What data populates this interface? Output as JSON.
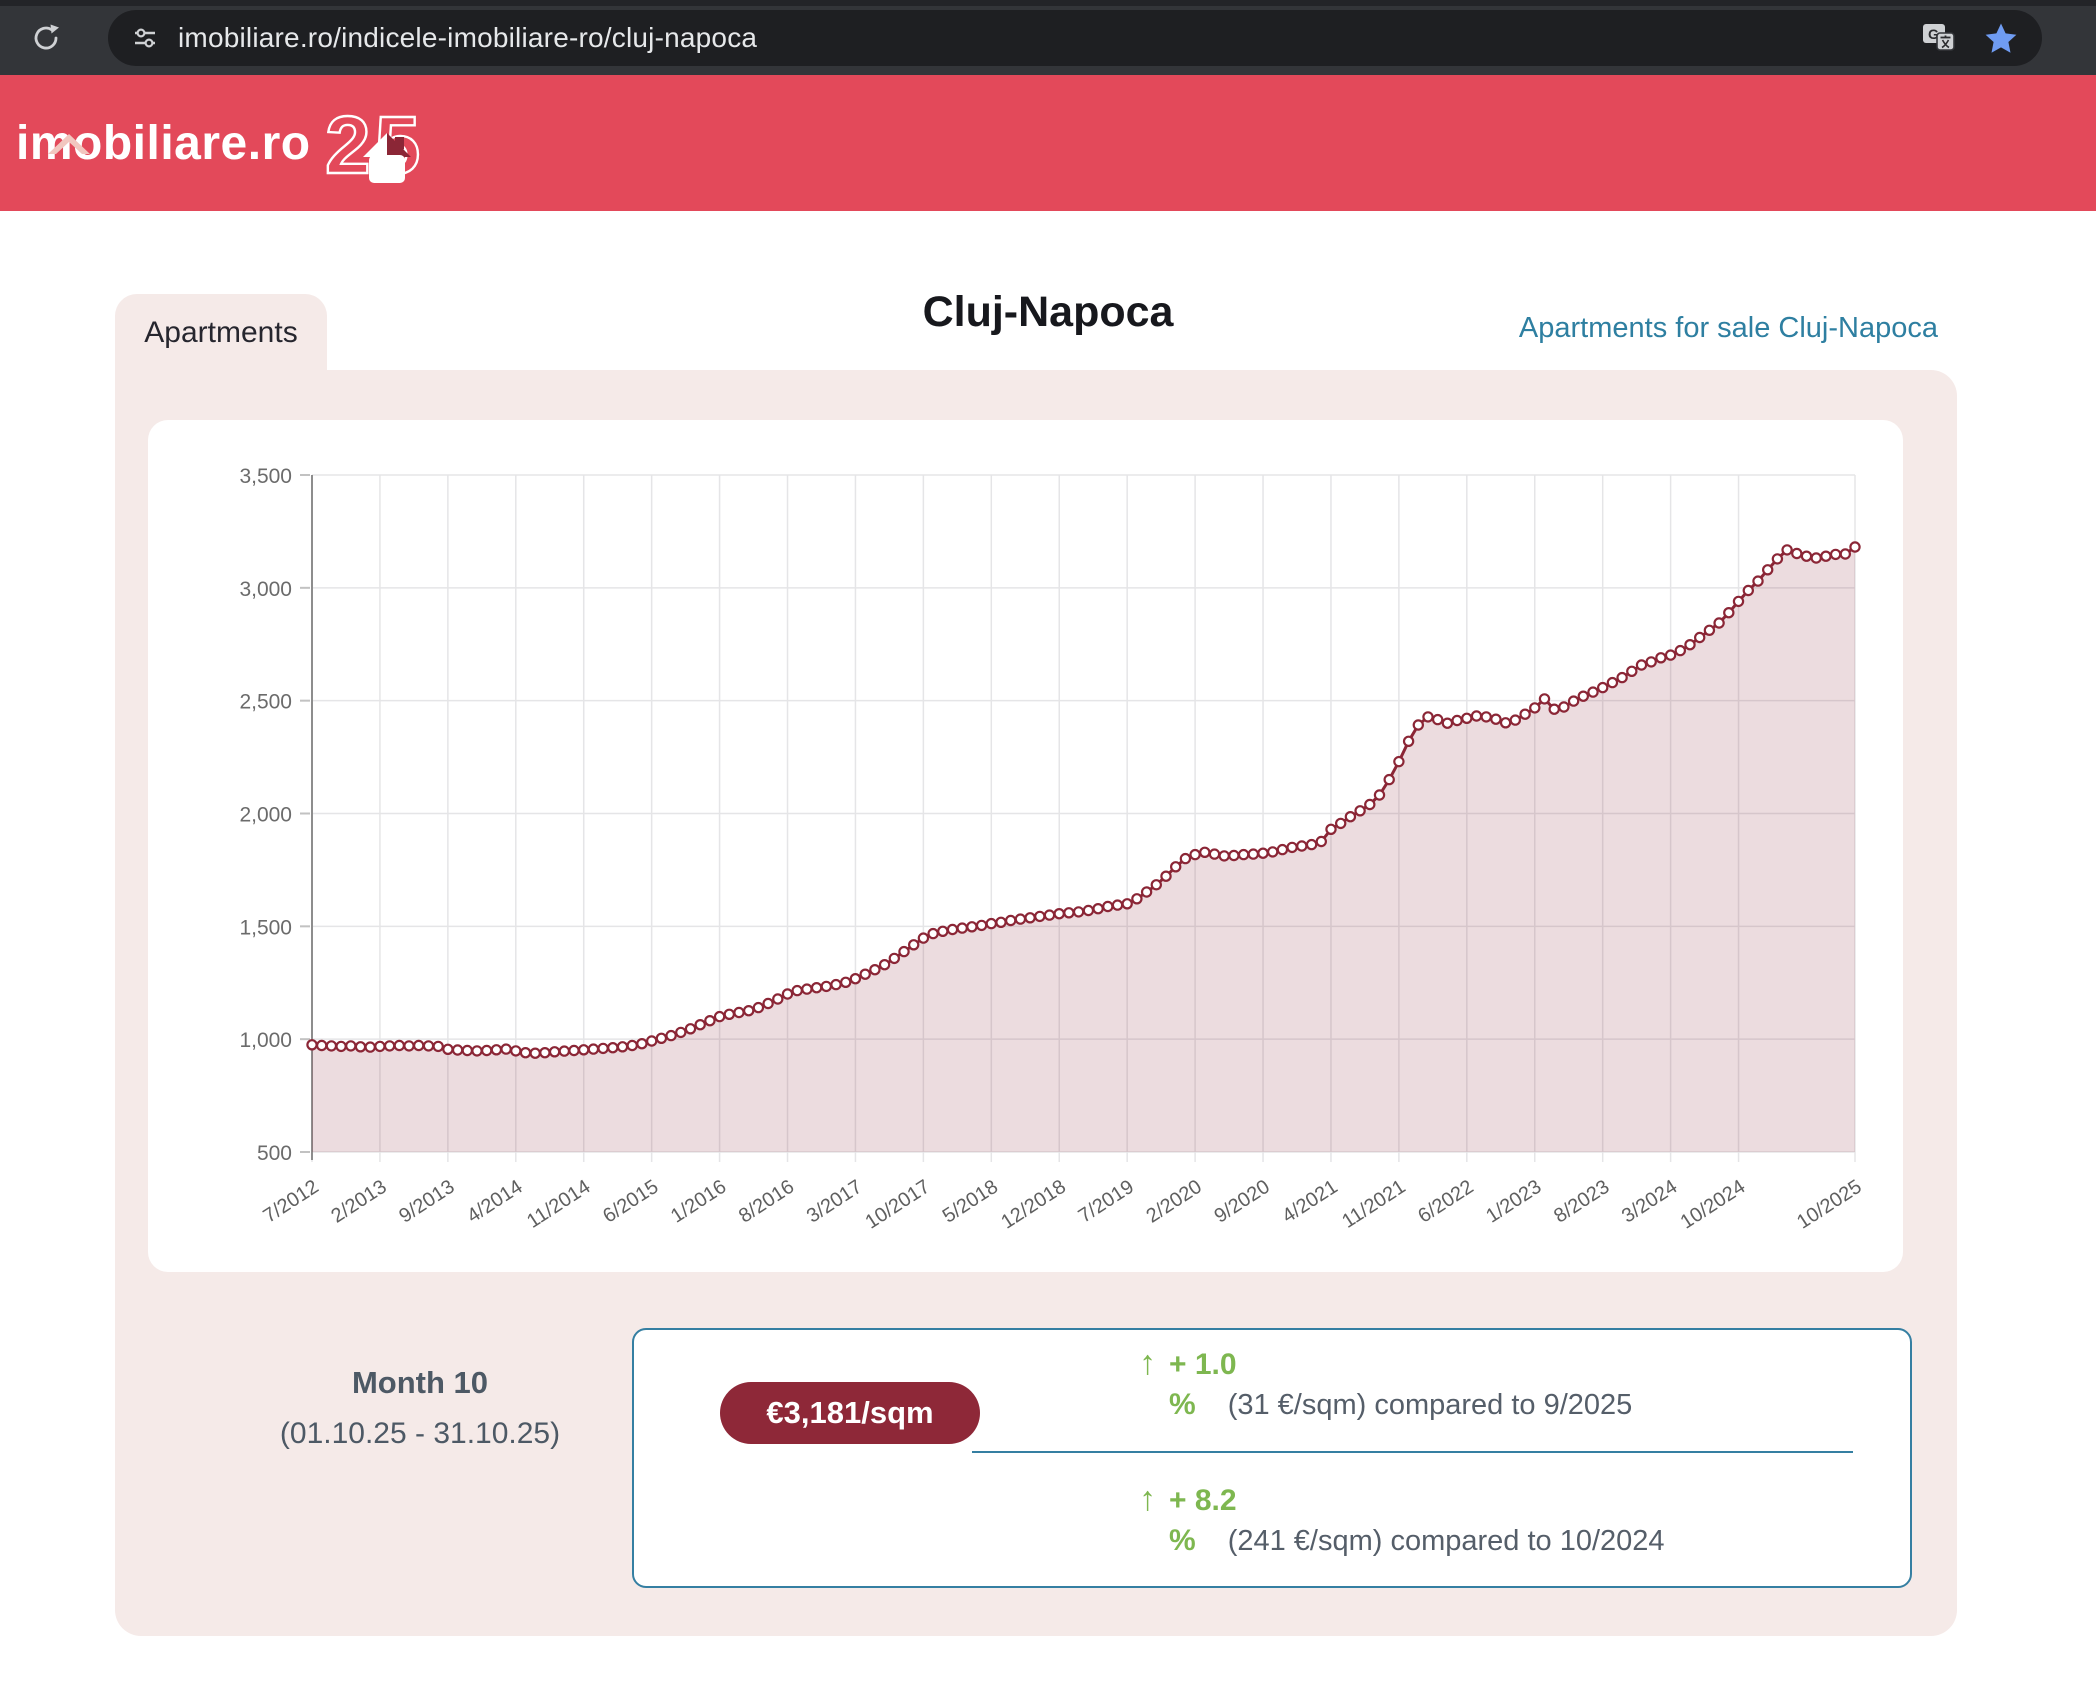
{
  "browser": {
    "url": "imobiliare.ro/indicele-imobiliare-ro/cluj-napoca"
  },
  "header": {
    "logo": "imobiliare.ro",
    "anniversary": "25"
  },
  "page": {
    "tab_label": "Apartments",
    "title": "Cluj-Napoca",
    "link_label": "Apartments for sale Cluj-Napoca"
  },
  "chart_data": {
    "type": "area",
    "title": "Cluj-Napoca apartment price index",
    "unit": "€/sqm",
    "x_start": "7/2012",
    "x_end": "10/2025",
    "x_interval": "monthly",
    "ylim": [
      500,
      3500
    ],
    "y_ticks": [
      500,
      1000,
      1500,
      2000,
      2500,
      3000,
      3500
    ],
    "y_tick_labels": [
      "500",
      "1,000",
      "1,500",
      "2,000",
      "2,500",
      "3,000",
      "3,500"
    ],
    "x_tick_labels": [
      "7/2012",
      "2/2013",
      "9/2013",
      "4/2014",
      "11/2014",
      "6/2015",
      "1/2016",
      "8/2016",
      "3/2017",
      "10/2017",
      "5/2018",
      "12/2018",
      "7/2019",
      "2/2020",
      "9/2020",
      "4/2021",
      "11/2021",
      "6/2022",
      "1/2023",
      "8/2023",
      "3/2024",
      "10/2024",
      "10/2025"
    ],
    "x_tick_indices": [
      0,
      7,
      14,
      21,
      28,
      35,
      42,
      49,
      56,
      63,
      70,
      77,
      84,
      91,
      98,
      105,
      112,
      119,
      126,
      133,
      140,
      147,
      159
    ],
    "grid": true,
    "legend": "none",
    "line_color": "#8b2636",
    "fill_color": "rgba(139,38,54,0.16)",
    "values": [
      975,
      972,
      970,
      968,
      970,
      966,
      965,
      968,
      970,
      972,
      970,
      972,
      970,
      968,
      955,
      952,
      950,
      948,
      950,
      953,
      956,
      948,
      940,
      938,
      940,
      944,
      947,
      950,
      953,
      956,
      959,
      962,
      966,
      972,
      980,
      992,
      1004,
      1016,
      1030,
      1046,
      1064,
      1082,
      1100,
      1110,
      1118,
      1126,
      1140,
      1158,
      1178,
      1200,
      1215,
      1222,
      1228,
      1234,
      1242,
      1252,
      1268,
      1288,
      1308,
      1330,
      1358,
      1388,
      1418,
      1448,
      1468,
      1478,
      1486,
      1492,
      1498,
      1504,
      1512,
      1518,
      1526,
      1532,
      1538,
      1544,
      1550,
      1556,
      1560,
      1564,
      1570,
      1578,
      1588,
      1594,
      1600,
      1622,
      1652,
      1684,
      1722,
      1764,
      1800,
      1818,
      1828,
      1820,
      1812,
      1814,
      1818,
      1820,
      1824,
      1830,
      1840,
      1850,
      1856,
      1862,
      1876,
      1930,
      1956,
      1986,
      2012,
      2040,
      2082,
      2150,
      2230,
      2320,
      2392,
      2428,
      2416,
      2400,
      2412,
      2422,
      2432,
      2428,
      2418,
      2402,
      2414,
      2440,
      2468,
      2508,
      2462,
      2472,
      2498,
      2520,
      2538,
      2558,
      2580,
      2602,
      2630,
      2658,
      2672,
      2690,
      2702,
      2722,
      2748,
      2780,
      2812,
      2844,
      2890,
      2940,
      2988,
      3030,
      3080,
      3128,
      3168,
      3152,
      3140,
      3132,
      3140,
      3148,
      3150,
      3181
    ]
  },
  "summary": {
    "month_label": "Month 10",
    "period": "(01.10.25 - 31.10.25)",
    "price": "€3,181/sqm",
    "changes": [
      {
        "arrow": "↑",
        "value": "+ 1.0",
        "unit": "%",
        "desc": "(31 €/sqm) compared to 9/2025"
      },
      {
        "arrow": "↑",
        "value": "+ 8.2",
        "unit": "%",
        "desc": "(241 €/sqm) compared to 10/2024"
      }
    ]
  },
  "colors": {
    "header_red": "#e3495a",
    "maroon": "#8b2636",
    "panel_pink": "#f5eae8",
    "teal": "#357fa2",
    "green": "#7eb750"
  }
}
